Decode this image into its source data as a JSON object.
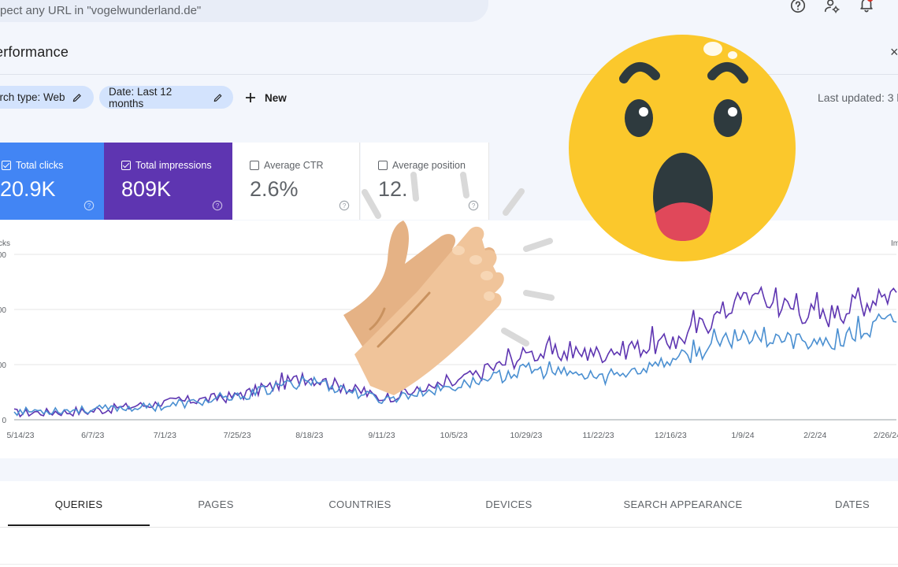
{
  "search": {
    "placeholder": "Inspect any URL in \"vogelwunderland.de\""
  },
  "header": {
    "title": "erformance"
  },
  "filters": {
    "search_type": "arch type: Web",
    "date": "Date: Last 12 months",
    "new_label": "New",
    "last_updated": "Last updated: 3 h"
  },
  "metrics": [
    {
      "label": "Total clicks",
      "value": "20.9K",
      "checked": true,
      "color": "#4285f4"
    },
    {
      "label": "Total impressions",
      "value": "809K",
      "checked": true,
      "color": "#5e35b1"
    },
    {
      "label": "Average CTR",
      "value": "2.6%",
      "checked": false
    },
    {
      "label": "Average position",
      "value": "12.",
      "checked": false
    }
  ],
  "chart": {
    "left_axis_title": "cks",
    "right_axis_title": "Im",
    "y_tick_labels": [
      "0",
      "00",
      "00",
      "00"
    ],
    "x_tick_labels": [
      "5/14/23",
      "6/7/23",
      "7/1/23",
      "7/25/23",
      "8/18/23",
      "9/11/23",
      "10/5/23",
      "10/29/23",
      "11/22/23",
      "12/16/23",
      "1/9/24",
      "2/2/24",
      "2/26/24"
    ]
  },
  "chart_data": {
    "type": "line",
    "x": [
      "5/14/23",
      "6/7/23",
      "7/1/23",
      "7/25/23",
      "8/18/23",
      "9/11/23",
      "10/5/23",
      "10/29/23",
      "11/22/23",
      "12/16/23",
      "1/9/24",
      "2/2/24",
      "2/26/24"
    ],
    "series": [
      {
        "name": "Total clicks",
        "color": "#4a8fd1",
        "values": [
          0.05,
          0.06,
          0.08,
          0.13,
          0.24,
          0.12,
          0.2,
          0.3,
          0.25,
          0.36,
          0.52,
          0.44,
          0.6
        ]
      },
      {
        "name": "Total impressions",
        "color": "#5e35b1",
        "values": [
          0.04,
          0.05,
          0.1,
          0.14,
          0.26,
          0.13,
          0.22,
          0.4,
          0.4,
          0.47,
          0.75,
          0.62,
          0.78
        ]
      }
    ],
    "ylim": [
      0,
      1
    ],
    "grid": true
  },
  "tabs": [
    {
      "label": "QUERIES",
      "active": true
    },
    {
      "label": "PAGES",
      "active": false
    },
    {
      "label": "COUNTRIES",
      "active": false
    },
    {
      "label": "DEVICES",
      "active": false
    },
    {
      "label": "SEARCH APPEARANCE",
      "active": false
    },
    {
      "label": "DATES",
      "active": false
    }
  ],
  "icons": {
    "help": "help-circle-icon",
    "admin": "person-settings-icon",
    "notifications": "bell-icon",
    "edit": "pencil-icon",
    "add": "plus-icon"
  },
  "colors": {
    "clicks": "#4285f4",
    "impressions": "#5e35b1",
    "chip": "#d3e3fd",
    "emoji": "#fbc82c"
  }
}
